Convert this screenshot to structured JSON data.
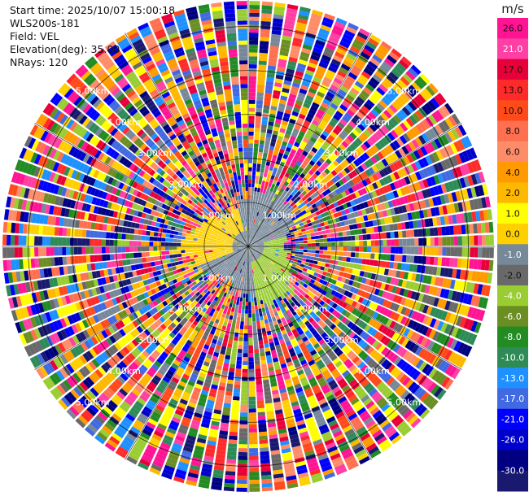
{
  "header": {
    "start_time": "Start time: 2025/10/07 15:00:18",
    "instrument": "WLS200s-181",
    "field": "Field: VEL",
    "elevation": "Elevation(deg): 35.00",
    "nrays": "NRays: 120"
  },
  "chart_data": {
    "type": "heatmap",
    "projection": "polar-ppi",
    "field": "VEL",
    "nrays": 120,
    "range_rings_km": [
      1,
      2,
      3,
      4,
      5
    ],
    "range_ring_labels": [
      "1.00km",
      "2.00km",
      "3.00km",
      "4.00km",
      "5.00km"
    ],
    "max_range_km": 5.6,
    "colorbar": {
      "unit": "m/s",
      "ticks": [
        "26.0",
        "21.0",
        "17.0",
        "13.0",
        "10.0",
        "8.0",
        "6.0",
        "4.0",
        "2.0",
        "1.0",
        "0.0",
        "-1.0",
        "-2.0",
        "-4.0",
        "-6.0",
        "-8.0",
        "-10.0",
        "-13.0",
        "-17.0",
        "-21.0",
        "-26.0",
        "-30.0"
      ],
      "colors": [
        "#ff1493",
        "#ff3fa4",
        "#e8003a",
        "#ff2a2a",
        "#ff4a1a",
        "#ff7050",
        "#ff8c69",
        "#ff9a00",
        "#ffb800",
        "#ffff00",
        "#ffd000",
        "#778899",
        "#696969",
        "#9acd32",
        "#6b8e23",
        "#228b22",
        "#2e8b57",
        "#1e90ff",
        "#4169e1",
        "#0000ff",
        "#0000cd",
        "#000080",
        "#191970"
      ]
    },
    "near_range_pattern": [
      {
        "sector": "north-west",
        "color": "#ffd000",
        "approx_velocity": "2.0"
      },
      {
        "sector": "south-east",
        "color": "#9acd32",
        "approx_velocity": "-1.0"
      },
      {
        "sector": "other",
        "color": "#778899",
        "approx_velocity": "0.0"
      }
    ]
  }
}
